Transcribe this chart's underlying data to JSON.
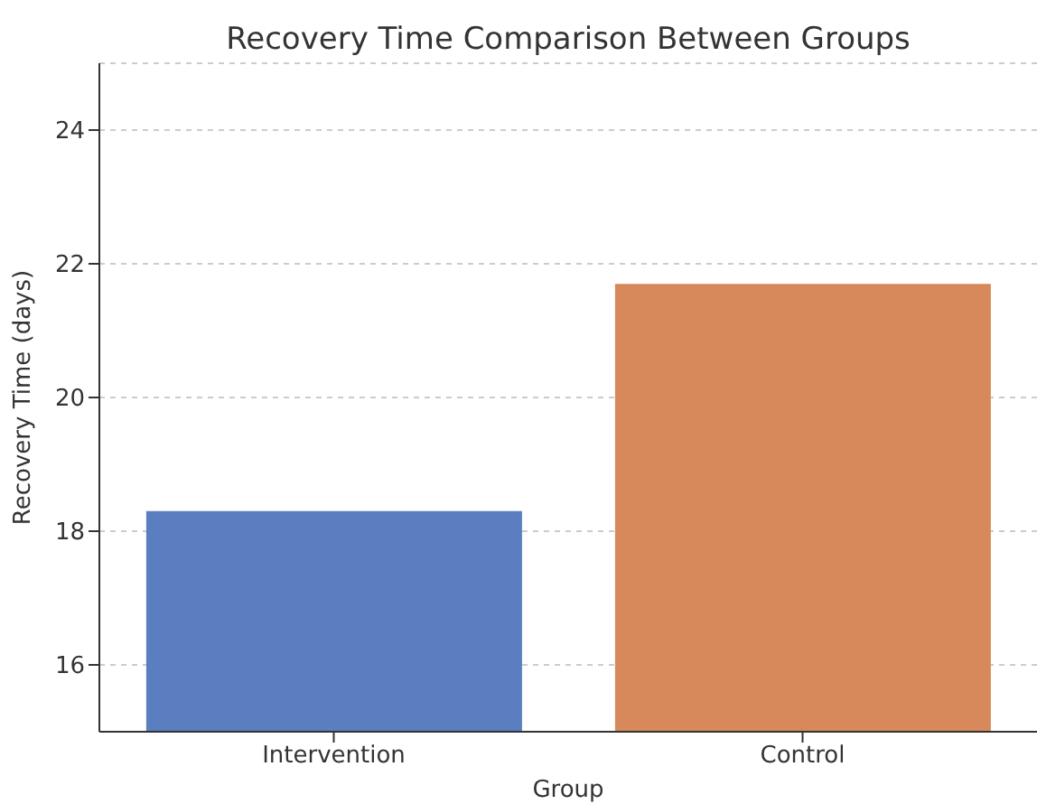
{
  "chart_data": {
    "type": "bar",
    "title": "Recovery Time Comparison Between Groups",
    "xlabel": "Group",
    "ylabel": "Recovery Time (days)",
    "categories": [
      "Intervention",
      "Control"
    ],
    "values": [
      18.3,
      21.7
    ],
    "colors": [
      "#5a7ec0",
      "#d8895c"
    ],
    "ylim": [
      15,
      25
    ],
    "yticks": [
      16,
      18,
      20,
      22,
      24
    ],
    "grid": "y"
  }
}
